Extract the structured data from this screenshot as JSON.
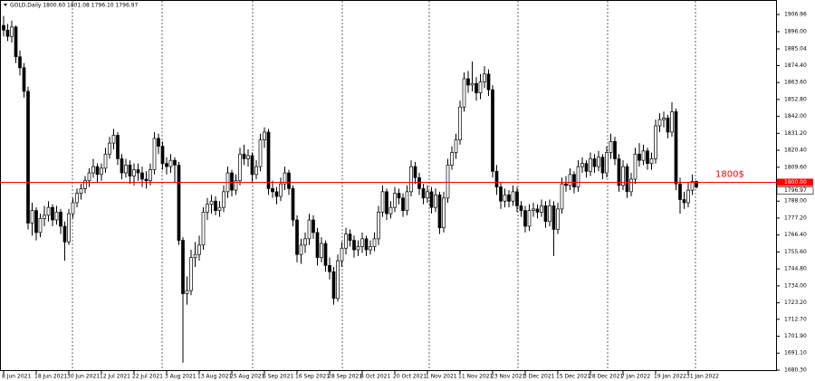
{
  "chart_data": {
    "type": "candlestick",
    "header": "GOLD,Daily  1800.60 1801.08 1796.10 1796.97",
    "annotation": "1800$",
    "up_color": "#ffffff",
    "down_color": "#000000",
    "line_color": "#000000",
    "hline": {
      "value": 1800,
      "label": "1800.00",
      "color": "#ff0000"
    },
    "last_price": 1796.97,
    "ylim": [
      1679.7,
      1916.2
    ],
    "yticks": [
      {
        "value": 1906.96,
        "label": "1906.96"
      },
      {
        "value": 1896,
        "label": "1896.00"
      },
      {
        "value": 1885.04,
        "label": "1885.04"
      },
      {
        "value": 1874.4,
        "label": "1874.40"
      },
      {
        "value": 1863.6,
        "label": "1863.60"
      },
      {
        "value": 1852.8,
        "label": "1852.80"
      },
      {
        "value": 1842,
        "label": "1842.00"
      },
      {
        "value": 1831.2,
        "label": "1831.20"
      },
      {
        "value": 1820.4,
        "label": "1820.40"
      },
      {
        "value": 1809.6,
        "label": "1809.60"
      },
      {
        "value": 1788,
        "label": "1788.00"
      },
      {
        "value": 1777.2,
        "label": "1777.20"
      },
      {
        "value": 1766.4,
        "label": "1766.40"
      },
      {
        "value": 1755.6,
        "label": "1755.60"
      },
      {
        "value": 1744.8,
        "label": "1744.80"
      },
      {
        "value": 1734,
        "label": "1734.00"
      },
      {
        "value": 1723.2,
        "label": "1723.20"
      },
      {
        "value": 1712.7,
        "label": "1712.70"
      },
      {
        "value": 1701.9,
        "label": "1701.90"
      },
      {
        "value": 1691.1,
        "label": "1691.10"
      },
      {
        "value": 1680.3,
        "label": "1680.30"
      }
    ],
    "categories": [
      "8 Jun 2021",
      null,
      null,
      null,
      null,
      null,
      null,
      null,
      "18 Jun 2021",
      null,
      null,
      null,
      null,
      null,
      null,
      null,
      "30 Jun 2021",
      null,
      null,
      null,
      null,
      null,
      null,
      null,
      "12 Jul 2021",
      null,
      null,
      null,
      null,
      null,
      null,
      null,
      "22 Jul 2021",
      null,
      null,
      null,
      null,
      null,
      null,
      null,
      "3 Aug 2021",
      null,
      null,
      null,
      null,
      null,
      null,
      null,
      "13 Aug 2021",
      null,
      null,
      null,
      null,
      null,
      null,
      null,
      "25 Aug 2021",
      null,
      null,
      null,
      null,
      null,
      null,
      null,
      "6 Sep 2021",
      null,
      null,
      null,
      null,
      null,
      null,
      null,
      "16 Sep 2021",
      null,
      null,
      null,
      null,
      null,
      null,
      null,
      "28 Sep 2021",
      null,
      null,
      null,
      null,
      null,
      null,
      null,
      "8 Oct 2021",
      null,
      null,
      null,
      null,
      null,
      null,
      null,
      "20 Oct 2021",
      null,
      null,
      null,
      null,
      null,
      null,
      null,
      "1 Nov 2021",
      null,
      null,
      null,
      null,
      null,
      null,
      null,
      "11 Nov 2021",
      null,
      null,
      null,
      null,
      null,
      null,
      null,
      "23 Nov 2021",
      null,
      null,
      null,
      null,
      null,
      null,
      null,
      "3 Dec 2021",
      null,
      null,
      null,
      null,
      null,
      null,
      null,
      "15 Dec 2021",
      null,
      null,
      null,
      null,
      null,
      null,
      null,
      "28 Dec 2021",
      null,
      null,
      null,
      null,
      null,
      null,
      null,
      "7 Jan 2022",
      null,
      null,
      null,
      null,
      null,
      null,
      null,
      "19 Jan 2022",
      null,
      null,
      null,
      null,
      null,
      null,
      null,
      "31 Jan 2022",
      null,
      null
    ],
    "open": [
      1900,
      1897,
      1893,
      1899,
      1880,
      1873,
      1858,
      1774,
      1782,
      1768,
      1777,
      1779,
      1784,
      1776,
      1781,
      1772,
      1762,
      1780,
      1787,
      1793,
      1796,
      1801,
      1806,
      1810,
      1805,
      1809,
      1818,
      1825,
      1830,
      1815,
      1806,
      1811,
      1804,
      1808,
      1806,
      1802,
      1801,
      1808,
      1828,
      1823,
      1812,
      1810,
      1814,
      1811,
      1763,
      1729,
      1731,
      1752,
      1754,
      1760,
      1781,
      1786,
      1788,
      1782,
      1784,
      1794,
      1806,
      1795,
      1801,
      1818,
      1815,
      1817,
      1805,
      1810,
      1827,
      1832,
      1796,
      1794,
      1791,
      1799,
      1806,
      1796,
      1776,
      1754,
      1760,
      1764,
      1776,
      1768,
      1752,
      1761,
      1747,
      1743,
      1726,
      1750,
      1758,
      1767,
      1763,
      1757,
      1759,
      1764,
      1757,
      1759,
      1764,
      1781,
      1794,
      1780,
      1784,
      1793,
      1790,
      1782,
      1794,
      1810,
      1803,
      1796,
      1790,
      1794,
      1784,
      1792,
      1771,
      1790,
      1811,
      1819,
      1827,
      1848,
      1866,
      1862,
      1863,
      1857,
      1864,
      1869,
      1859,
      1807,
      1797,
      1788,
      1792,
      1788,
      1794,
      1785,
      1782,
      1772,
      1782,
      1783,
      1781,
      1785,
      1775,
      1785,
      1770,
      1783,
      1799,
      1798,
      1805,
      1797,
      1810,
      1812,
      1807,
      1815,
      1810,
      1816,
      1806,
      1819,
      1826,
      1815,
      1798,
      1810,
      1794,
      1802,
      1818,
      1814,
      1820,
      1812,
      1815,
      1836,
      1840,
      1841,
      1832,
      1845,
      1799,
      1789,
      1787,
      1795,
      1800.6
    ],
    "high": [
      1906,
      1901,
      1903,
      1900,
      1884,
      1876,
      1861,
      1787,
      1784,
      1780,
      1785,
      1788,
      1786,
      1785,
      1783,
      1775,
      1783,
      1790,
      1796,
      1799,
      1804,
      1809,
      1815,
      1812,
      1812,
      1822,
      1829,
      1834,
      1832,
      1818,
      1815,
      1814,
      1812,
      1812,
      1810,
      1807,
      1812,
      1832,
      1831,
      1826,
      1816,
      1818,
      1816,
      1813,
      1765,
      1740,
      1757,
      1762,
      1766,
      1784,
      1790,
      1792,
      1791,
      1788,
      1798,
      1810,
      1808,
      1805,
      1822,
      1824,
      1821,
      1819,
      1814,
      1831,
      1835,
      1834,
      1801,
      1797,
      1803,
      1810,
      1808,
      1798,
      1779,
      1764,
      1768,
      1780,
      1779,
      1771,
      1765,
      1763,
      1752,
      1746,
      1754,
      1762,
      1771,
      1770,
      1766,
      1763,
      1768,
      1766,
      1763,
      1768,
      1785,
      1798,
      1796,
      1788,
      1797,
      1796,
      1793,
      1798,
      1814,
      1813,
      1806,
      1799,
      1798,
      1797,
      1796,
      1794,
      1794,
      1815,
      1823,
      1831,
      1852,
      1870,
      1871,
      1877,
      1867,
      1869,
      1874,
      1872,
      1862,
      1811,
      1800,
      1796,
      1795,
      1798,
      1797,
      1788,
      1785,
      1786,
      1787,
      1786,
      1789,
      1788,
      1789,
      1788,
      1787,
      1803,
      1804,
      1809,
      1807,
      1814,
      1816,
      1814,
      1819,
      1818,
      1820,
      1818,
      1823,
      1831,
      1829,
      1818,
      1814,
      1812,
      1806,
      1822,
      1825,
      1824,
      1822,
      1819,
      1840,
      1844,
      1845,
      1843,
      1851,
      1847,
      1803,
      1794,
      1800,
      1805,
      1801.08
    ],
    "low": [
      1893,
      1890,
      1889,
      1876,
      1868,
      1854,
      1770,
      1766,
      1763,
      1765,
      1772,
      1775,
      1772,
      1773,
      1767,
      1750,
      1760,
      1777,
      1784,
      1789,
      1793,
      1797,
      1803,
      1800,
      1801,
      1806,
      1815,
      1821,
      1811,
      1802,
      1803,
      1799,
      1798,
      1801,
      1797,
      1796,
      1798,
      1805,
      1818,
      1808,
      1805,
      1806,
      1800,
      1760,
      1685,
      1722,
      1728,
      1746,
      1750,
      1757,
      1776,
      1780,
      1779,
      1778,
      1781,
      1790,
      1791,
      1792,
      1798,
      1811,
      1810,
      1800,
      1802,
      1807,
      1822,
      1792,
      1790,
      1786,
      1788,
      1795,
      1792,
      1772,
      1749,
      1748,
      1755,
      1760,
      1764,
      1747,
      1749,
      1743,
      1738,
      1722,
      1724,
      1746,
      1754,
      1759,
      1752,
      1753,
      1755,
      1753,
      1754,
      1756,
      1760,
      1778,
      1776,
      1777,
      1781,
      1786,
      1778,
      1779,
      1791,
      1799,
      1792,
      1786,
      1787,
      1780,
      1781,
      1767,
      1768,
      1787,
      1808,
      1815,
      1824,
      1845,
      1857,
      1858,
      1852,
      1853,
      1860,
      1855,
      1803,
      1792,
      1783,
      1784,
      1784,
      1785,
      1781,
      1778,
      1768,
      1769,
      1778,
      1777,
      1778,
      1771,
      1772,
      1753,
      1767,
      1780,
      1794,
      1795,
      1793,
      1794,
      1806,
      1803,
      1804,
      1806,
      1807,
      1802,
      1803,
      1815,
      1811,
      1794,
      1795,
      1790,
      1791,
      1799,
      1810,
      1811,
      1808,
      1808,
      1812,
      1832,
      1835,
      1828,
      1829,
      1795,
      1780,
      1783,
      1784,
      1792,
      1796.1
    ],
    "close": [
      1897,
      1893,
      1899,
      1880,
      1873,
      1858,
      1774,
      1782,
      1768,
      1777,
      1779,
      1784,
      1776,
      1781,
      1772,
      1762,
      1780,
      1787,
      1793,
      1796,
      1801,
      1806,
      1810,
      1805,
      1809,
      1818,
      1825,
      1830,
      1815,
      1806,
      1811,
      1804,
      1808,
      1806,
      1802,
      1801,
      1808,
      1828,
      1823,
      1812,
      1810,
      1814,
      1811,
      1763,
      1729,
      1731,
      1752,
      1754,
      1760,
      1781,
      1786,
      1788,
      1782,
      1784,
      1794,
      1806,
      1795,
      1801,
      1818,
      1815,
      1817,
      1805,
      1810,
      1827,
      1832,
      1796,
      1794,
      1791,
      1799,
      1806,
      1796,
      1776,
      1754,
      1760,
      1764,
      1776,
      1768,
      1752,
      1761,
      1747,
      1743,
      1726,
      1750,
      1758,
      1767,
      1763,
      1757,
      1759,
      1764,
      1757,
      1759,
      1764,
      1781,
      1794,
      1780,
      1784,
      1793,
      1790,
      1782,
      1794,
      1810,
      1803,
      1796,
      1790,
      1794,
      1784,
      1792,
      1771,
      1790,
      1811,
      1819,
      1827,
      1848,
      1866,
      1862,
      1863,
      1857,
      1864,
      1869,
      1859,
      1807,
      1797,
      1788,
      1792,
      1788,
      1794,
      1785,
      1782,
      1772,
      1782,
      1783,
      1781,
      1785,
      1775,
      1785,
      1770,
      1783,
      1799,
      1798,
      1805,
      1797,
      1810,
      1812,
      1807,
      1815,
      1810,
      1816,
      1806,
      1819,
      1826,
      1815,
      1798,
      1810,
      1794,
      1802,
      1818,
      1814,
      1820,
      1812,
      1815,
      1836,
      1840,
      1841,
      1832,
      1845,
      1799,
      1789,
      1787,
      1795,
      1800.6,
      1796.97
    ]
  }
}
